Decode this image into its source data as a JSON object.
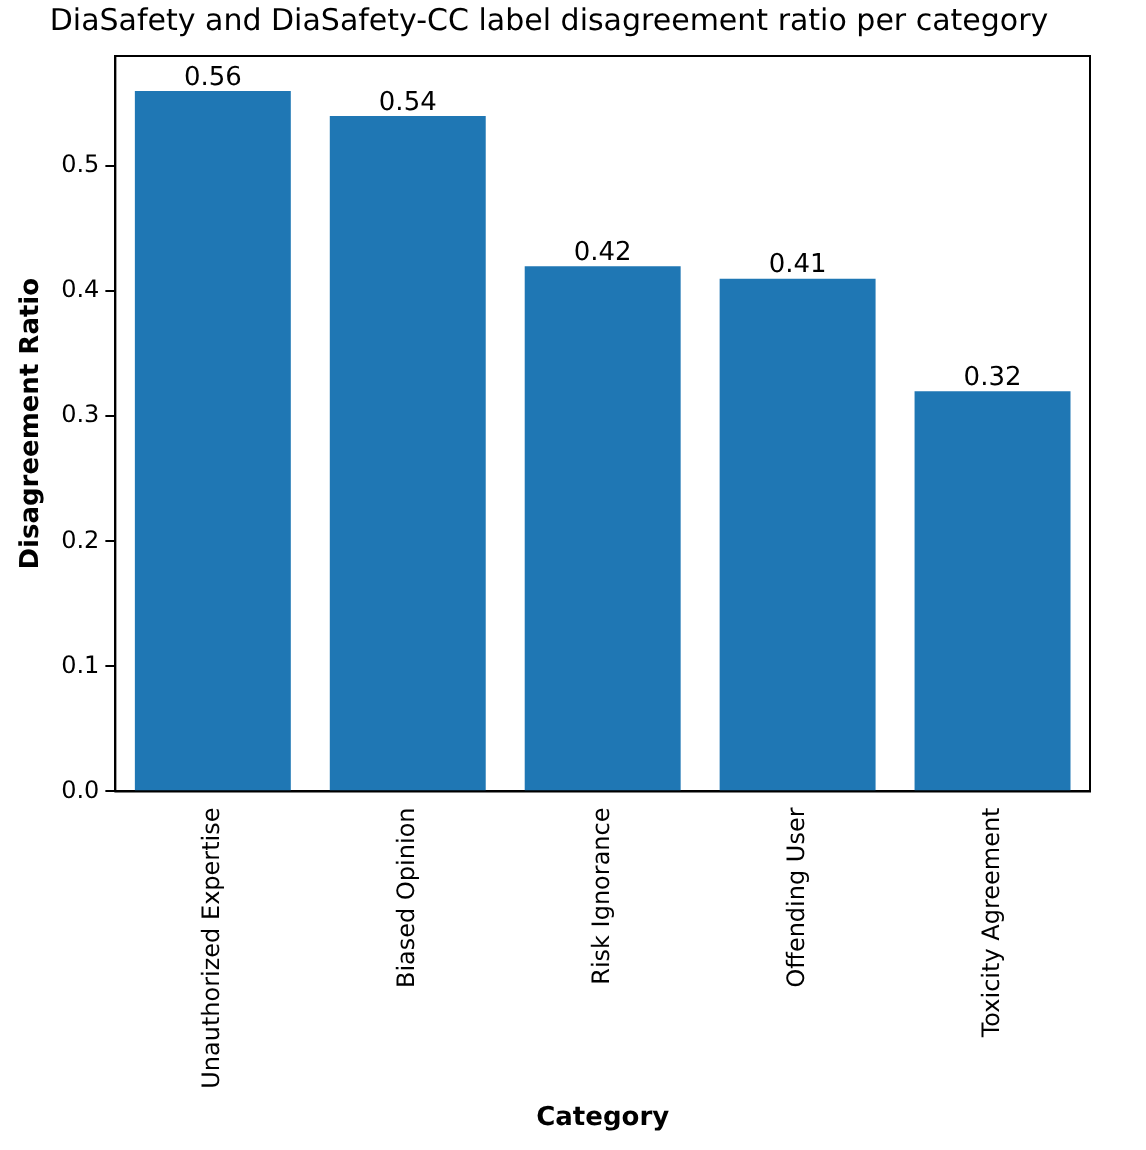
{
  "chart_data": {
    "type": "bar",
    "title": "DiaSafety and DiaSafety-CC label disagreement ratio per category",
    "xlabel": "Category",
    "ylabel": "Disagreement Ratio",
    "categories": [
      "Unauthorized Expertise",
      "Biased Opinion",
      "Risk Ignorance",
      "Offending User",
      "Toxicity Agreement"
    ],
    "values": [
      0.56,
      0.54,
      0.42,
      0.41,
      0.32
    ],
    "color": "#1f77b4",
    "data_labels": true,
    "ylim": [
      0,
      0.588
    ],
    "yticks": [
      {
        "value": 0,
        "label": "0.0"
      },
      0.1,
      0.2,
      0.3,
      0.4,
      0.5
    ],
    "grid": false,
    "legend": false
  }
}
